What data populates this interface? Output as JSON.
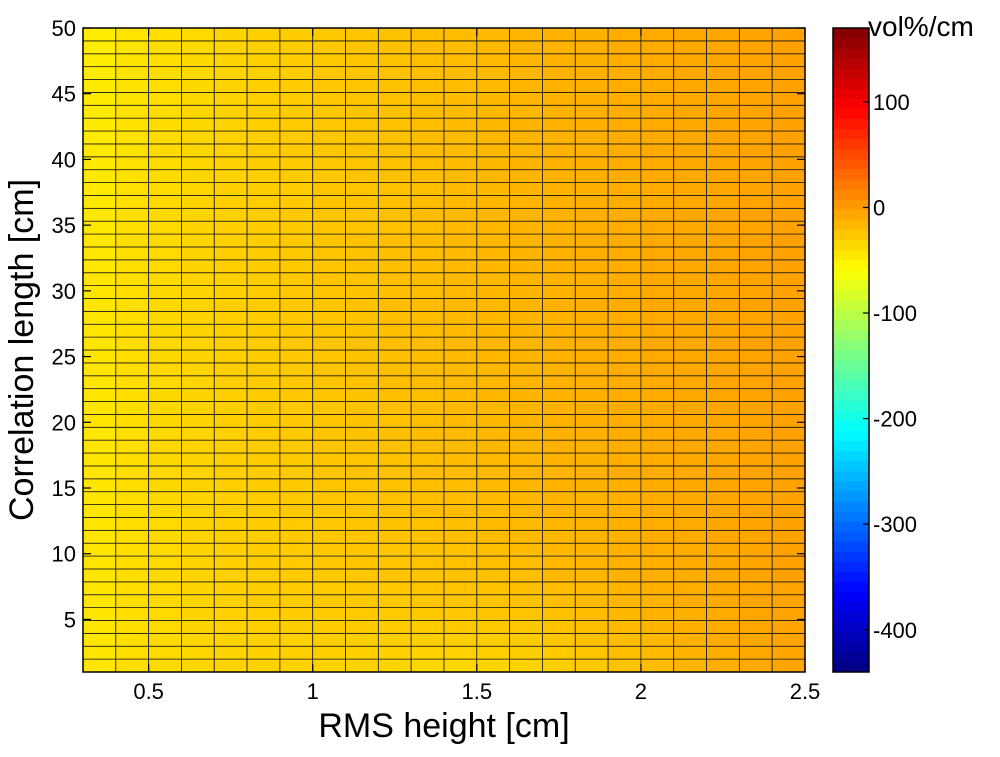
{
  "chart_data": {
    "type": "heatmap",
    "title": "",
    "xlabel": "RMS height [cm]",
    "ylabel": "Correlation length [cm]",
    "xlim": [
      0.3,
      2.5
    ],
    "ylim": [
      1,
      50
    ],
    "x_ticks": [
      "0.5",
      "1",
      "1.5",
      "2",
      "2.5"
    ],
    "y_ticks": [
      "5",
      "10",
      "15",
      "20",
      "25",
      "30",
      "35",
      "40",
      "45",
      "50"
    ],
    "x_centers": [
      0.35,
      0.45,
      0.55,
      0.65,
      0.75,
      0.85,
      0.95,
      1.05,
      1.15,
      1.25,
      1.35,
      1.45,
      1.55,
      1.65,
      1.75,
      1.85,
      1.95,
      2.05,
      2.15,
      2.25,
      2.35,
      2.45
    ],
    "y_range": [
      1,
      50
    ],
    "y_cells": 50,
    "values_note_units": "vol%/cm",
    "values_model": {
      "base": -50,
      "slope_x": 40,
      "bottom_dip": -20
    },
    "colorbar": {
      "label": "vol%/cm",
      "range": [
        -440,
        170
      ],
      "ticks": [
        "100",
        "0",
        "-100",
        "-200",
        "-300",
        "-400"
      ],
      "tick_values": [
        100,
        0,
        -100,
        -200,
        -300,
        -400
      ],
      "colormap": "jet"
    },
    "grid_lines": true
  }
}
